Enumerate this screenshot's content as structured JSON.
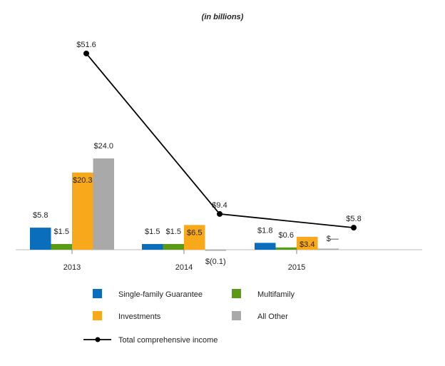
{
  "chart_data": {
    "type": "bar",
    "title": "(in billions)",
    "categories": [
      "2013",
      "2014",
      "2015"
    ],
    "series": [
      {
        "name": "Single-family Guarantee",
        "color": "#0a6ebd",
        "values": [
          5.8,
          1.5,
          1.8
        ],
        "labels": [
          "$5.8",
          "$1.5",
          "$1.8"
        ]
      },
      {
        "name": "Multifamily",
        "color": "#5a9a16",
        "values": [
          1.5,
          1.5,
          0.6
        ],
        "labels": [
          "$1.5",
          "$1.5",
          "$0.6"
        ]
      },
      {
        "name": "Investments",
        "color": "#f7a81b",
        "values": [
          20.3,
          6.5,
          3.4
        ],
        "labels": [
          "$20.3",
          "$6.5",
          "$3.4"
        ]
      },
      {
        "name": "All Other",
        "color": "#a9a9a9",
        "values": [
          24.0,
          -0.1,
          0
        ],
        "labels": [
          "$24.0",
          "$(0.1)",
          "$—"
        ]
      }
    ],
    "line": {
      "name": "Total comprehensive income",
      "color": "#000000",
      "values": [
        51.6,
        9.4,
        5.8
      ],
      "labels": [
        "$51.6",
        "$9.4",
        "$5.8"
      ]
    },
    "xlabel": "",
    "ylabel": "",
    "grid": false,
    "legend_placement": "bottom"
  }
}
